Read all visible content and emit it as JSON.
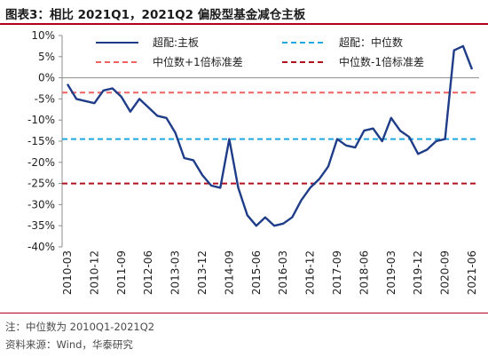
{
  "header": {
    "figure_label": "图表3：",
    "title": "相比 2021Q1，2021Q2 偏股型基金减仓主板"
  },
  "chart_data": {
    "type": "line",
    "ylim": [
      -40,
      10
    ],
    "ylabel": "",
    "xlabel": "",
    "y_ticks": [
      10,
      5,
      0,
      -5,
      -10,
      -15,
      -20,
      -25,
      -30,
      -35,
      -40
    ],
    "y_tick_labels": [
      "10%",
      "5%",
      "0%",
      "-5%",
      "-10%",
      "-15%",
      "-20%",
      "-25%",
      "-30%",
      "-35%",
      "-40%"
    ],
    "x_tick_labels": [
      "2010-03",
      "2010-12",
      "2011-09",
      "2012-06",
      "2013-03",
      "2013-12",
      "2014-09",
      "2015-06",
      "2016-03",
      "2016-12",
      "2017-09",
      "2018-06",
      "2019-03",
      "2019-12",
      "2020-09",
      "2021-06"
    ],
    "grid": false,
    "legend_position": "top",
    "series": [
      {
        "name": "超配:主板",
        "style": "solid",
        "color": "#1f3c88",
        "x": [
          "2010-03",
          "2010-06",
          "2010-09",
          "2010-12",
          "2011-03",
          "2011-06",
          "2011-09",
          "2011-12",
          "2012-03",
          "2012-06",
          "2012-09",
          "2012-12",
          "2013-03",
          "2013-06",
          "2013-09",
          "2013-12",
          "2014-03",
          "2014-06",
          "2014-09",
          "2014-12",
          "2015-03",
          "2015-06",
          "2015-09",
          "2015-12",
          "2016-03",
          "2016-06",
          "2016-09",
          "2016-12",
          "2017-03",
          "2017-06",
          "2017-09",
          "2017-12",
          "2018-03",
          "2018-06",
          "2018-09",
          "2018-12",
          "2019-03",
          "2019-06",
          "2019-09",
          "2019-12",
          "2020-03",
          "2020-06",
          "2020-09",
          "2020-12",
          "2021-03",
          "2021-06"
        ],
        "values": [
          -1.5,
          -5.0,
          -5.5,
          -6.0,
          -3.0,
          -2.5,
          -4.5,
          -8.0,
          -5.0,
          -7.0,
          -9.0,
          -9.5,
          -13.0,
          -19.0,
          -19.5,
          -23.0,
          -25.5,
          -26.0,
          -14.5,
          -26.0,
          -32.5,
          -35.0,
          -33.0,
          -35.0,
          -34.5,
          -33.0,
          -29.0,
          -26.0,
          -24.0,
          -21.0,
          -14.5,
          -16.0,
          -16.5,
          -12.5,
          -12.0,
          -15.0,
          -9.5,
          -12.5,
          -14.0,
          -18.0,
          -17.0,
          -15.0,
          -14.5,
          6.5,
          7.5,
          2.0
        ]
      },
      {
        "name": "超配：中位数",
        "style": "dashed",
        "color": "#22a8e0",
        "values": [
          -14.5
        ]
      },
      {
        "name": "中位数+1倍标准差",
        "style": "dashed",
        "color": "#ee6262",
        "values": [
          -3.5
        ]
      },
      {
        "name": "中位数-1倍标准差",
        "style": "dashed",
        "color": "#b0101e",
        "values": [
          -25.0
        ]
      }
    ]
  },
  "footer": {
    "note": "注：中位数为 2010Q1-2021Q2",
    "source": "资料来源：Wind，华泰研究"
  }
}
